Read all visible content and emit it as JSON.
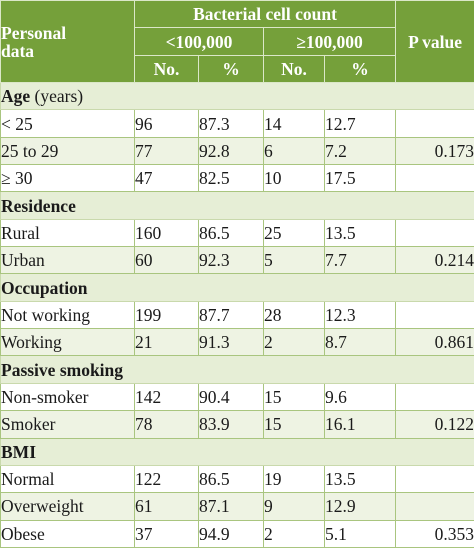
{
  "header": {
    "col_personal": "Personal data",
    "col_personal_line1": "Personal",
    "col_personal_line2": "data",
    "col_count": "Bacterial cell count",
    "group_lt": "<100,000",
    "group_ge": "≥100,000",
    "col_no": "No.",
    "col_pct": "%",
    "col_p": "P value"
  },
  "sections": [
    {
      "title": "Age",
      "unit": "(years)",
      "rows": [
        {
          "label": "< 25",
          "lt_no": "96",
          "lt_pct": "87.3",
          "ge_no": "14",
          "ge_pct": "12.7",
          "p": ""
        },
        {
          "label": "25 to 29",
          "lt_no": "77",
          "lt_pct": "92.8",
          "ge_no": "6",
          "ge_pct": "7.2",
          "p": "0.173"
        },
        {
          "label": "≥ 30",
          "lt_no": "47",
          "lt_pct": "82.5",
          "ge_no": "10",
          "ge_pct": "17.5",
          "p": ""
        }
      ]
    },
    {
      "title": "Residence",
      "unit": "",
      "rows": [
        {
          "label": "Rural",
          "lt_no": "160",
          "lt_pct": "86.5",
          "ge_no": "25",
          "ge_pct": "13.5",
          "p": ""
        },
        {
          "label": "Urban",
          "lt_no": "60",
          "lt_pct": "92.3",
          "ge_no": "5",
          "ge_pct": "7.7",
          "p": "0.214"
        }
      ]
    },
    {
      "title": "Occupation",
      "unit": "",
      "rows": [
        {
          "label": "Not working",
          "lt_no": "199",
          "lt_pct": "87.7",
          "ge_no": "28",
          "ge_pct": "12.3",
          "p": ""
        },
        {
          "label": "Working",
          "lt_no": "21",
          "lt_pct": "91.3",
          "ge_no": "2",
          "ge_pct": "8.7",
          "p": "0.861"
        }
      ]
    },
    {
      "title": "Passive smoking",
      "unit": "",
      "rows": [
        {
          "label": "Non-smoker",
          "lt_no": "142",
          "lt_pct": "90.4",
          "ge_no": "15",
          "ge_pct": "9.6",
          "p": ""
        },
        {
          "label": "Smoker",
          "lt_no": "78",
          "lt_pct": "83.9",
          "ge_no": "15",
          "ge_pct": "16.1",
          "p": "0.122"
        }
      ]
    },
    {
      "title": "BMI",
      "unit": "",
      "rows": [
        {
          "label": "Normal",
          "lt_no": "122",
          "lt_pct": "86.5",
          "ge_no": "19",
          "ge_pct": "13.5",
          "p": ""
        },
        {
          "label": "Overweight",
          "lt_no": "61",
          "lt_pct": "87.1",
          "ge_no": "9",
          "ge_pct": "12.9",
          "p": ""
        },
        {
          "label": "Obese",
          "lt_no": "37",
          "lt_pct": "94.9",
          "ge_no": "2",
          "ge_pct": "5.1",
          "p": "0.353"
        }
      ]
    }
  ],
  "colors": {
    "header_bg": "#75a03a",
    "section_bg": "#e6eed6",
    "row_alt_bg": "#eef3e3",
    "border": "#a9c57f"
  }
}
